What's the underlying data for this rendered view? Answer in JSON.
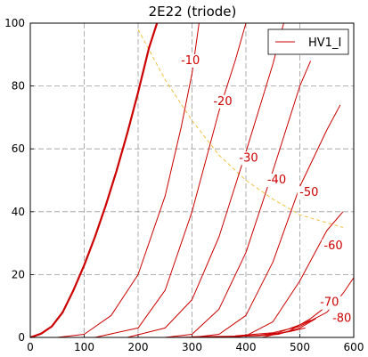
{
  "chart_data": {
    "type": "line",
    "title": "2E22 (triode)",
    "xlabel": "",
    "ylabel": "",
    "xlim": [
      0,
      600
    ],
    "ylim": [
      0,
      100
    ],
    "x_ticks": [
      0,
      100,
      200,
      300,
      400,
      500,
      600
    ],
    "y_ticks": [
      0,
      20,
      40,
      60,
      80,
      100
    ],
    "grid": true,
    "legend": {
      "position": "top-right",
      "entries": [
        "HV1_I"
      ]
    },
    "colors": {
      "curve": "#cc0000",
      "max_dissipation": "#f0c040"
    },
    "series": [
      {
        "label": "",
        "bold": true,
        "points": [
          [
            0,
            0
          ],
          [
            20,
            1.2
          ],
          [
            40,
            3.5
          ],
          [
            60,
            8
          ],
          [
            80,
            15
          ],
          [
            100,
            23
          ],
          [
            120,
            32
          ],
          [
            140,
            42
          ],
          [
            160,
            53
          ],
          [
            180,
            65
          ],
          [
            200,
            78
          ],
          [
            220,
            92
          ],
          [
            235,
            100
          ]
        ]
      },
      {
        "label": "-10",
        "points": [
          [
            50,
            0
          ],
          [
            100,
            1
          ],
          [
            150,
            7
          ],
          [
            200,
            20
          ],
          [
            250,
            45
          ],
          [
            280,
            67
          ],
          [
            300,
            84
          ],
          [
            313,
            100
          ]
        ]
      },
      {
        "label": "-20",
        "points": [
          [
            120,
            0
          ],
          [
            200,
            3
          ],
          [
            250,
            15
          ],
          [
            300,
            40
          ],
          [
            350,
            72
          ],
          [
            380,
            88
          ],
          [
            400,
            100
          ]
        ]
      },
      {
        "label": "-30",
        "points": [
          [
            180,
            0
          ],
          [
            250,
            3
          ],
          [
            300,
            12
          ],
          [
            350,
            32
          ],
          [
            400,
            59
          ],
          [
            450,
            87
          ],
          [
            470,
            100
          ]
        ]
      },
      {
        "label": "-40",
        "points": [
          [
            250,
            0
          ],
          [
            300,
            1
          ],
          [
            350,
            9
          ],
          [
            400,
            27
          ],
          [
            450,
            53
          ],
          [
            500,
            80
          ],
          [
            520,
            88
          ]
        ]
      },
      {
        "label": "-50",
        "points": [
          [
            300,
            0
          ],
          [
            350,
            1
          ],
          [
            400,
            7
          ],
          [
            450,
            24
          ],
          [
            500,
            48
          ],
          [
            550,
            66
          ],
          [
            575,
            74
          ]
        ]
      },
      {
        "label": "-60",
        "points": [
          [
            370,
            0
          ],
          [
            400,
            0.5
          ],
          [
            450,
            5
          ],
          [
            500,
            18
          ],
          [
            550,
            34
          ],
          [
            580,
            40
          ]
        ]
      },
      {
        "label": "-70",
        "points": [
          [
            430,
            0
          ],
          [
            480,
            2
          ],
          [
            520,
            6
          ],
          [
            550,
            10
          ],
          [
            570,
            13
          ]
        ]
      },
      {
        "label": "-80",
        "points": [
          [
            370,
            0.3
          ],
          [
            420,
            0.5
          ],
          [
            460,
            1
          ],
          [
            500,
            3
          ],
          [
            530,
            6
          ]
        ]
      },
      {
        "label": "",
        "points": [
          [
            250,
            0
          ],
          [
            350,
            0.2
          ],
          [
            420,
            0.6
          ],
          [
            460,
            1.5
          ],
          [
            500,
            4
          ],
          [
            520,
            5.5
          ]
        ]
      },
      {
        "label": "",
        "points": [
          [
            300,
            0.2
          ],
          [
            380,
            0.4
          ],
          [
            440,
            0.8
          ],
          [
            480,
            1.8
          ],
          [
            510,
            3
          ]
        ]
      },
      {
        "label": "",
        "points": [
          [
            380,
            0.5
          ],
          [
            450,
            1.5
          ],
          [
            500,
            3.5
          ],
          [
            550,
            8
          ],
          [
            580,
            14
          ],
          [
            600,
            19
          ]
        ]
      }
    ],
    "max_dissipation_curve": {
      "points": [
        [
          200,
          98
        ],
        [
          250,
          82
        ],
        [
          300,
          69
        ],
        [
          350,
          58
        ],
        [
          400,
          50
        ],
        [
          450,
          44
        ],
        [
          500,
          39
        ],
        [
          550,
          36.5
        ],
        [
          580,
          35
        ]
      ]
    },
    "curve_labels": [
      {
        "text": "-10",
        "x": 297,
        "y": 87
      },
      {
        "text": "-20",
        "x": 357,
        "y": 74
      },
      {
        "text": "-30",
        "x": 405,
        "y": 56
      },
      {
        "text": "-40",
        "x": 457,
        "y": 49
      },
      {
        "text": "-50",
        "x": 517,
        "y": 45
      },
      {
        "text": "-60",
        "x": 562,
        "y": 28
      },
      {
        "text": "-70",
        "x": 555,
        "y": 10
      },
      {
        "text": "-80",
        "x": 578,
        "y": 5
      }
    ]
  }
}
